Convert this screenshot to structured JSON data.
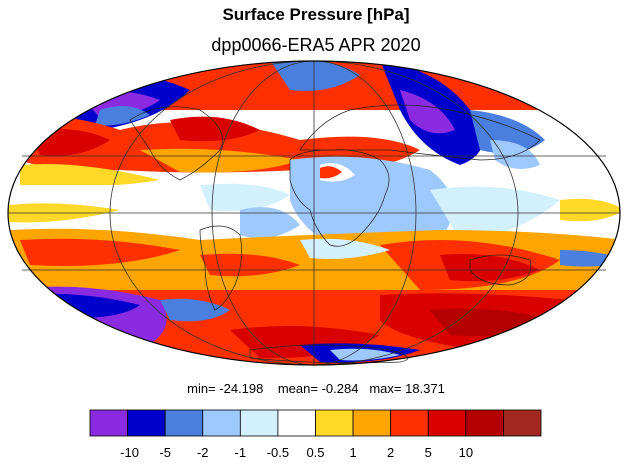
{
  "title": "Surface Pressure [hPa]",
  "subtitle": "dpp0066-ERA5  APR 2020",
  "stats": {
    "min_label": "min=",
    "min_value": "-24.198",
    "mean_label": "mean=",
    "mean_value": "-0.284",
    "max_label": "max=",
    "max_value": "18.371"
  },
  "colorbar": {
    "colors": [
      "#8a2be2",
      "#0000cd",
      "#4a7fe0",
      "#9ec9ff",
      "#d3f0ff",
      "#ffffff",
      "#ffd828",
      "#ffa500",
      "#ff3000",
      "#d90000",
      "#b40000",
      "#a02820"
    ],
    "tick_labels": [
      "-10",
      "-5",
      "-2",
      "-1",
      "-0.5",
      "0.5",
      "1",
      "2",
      "5",
      "10"
    ]
  },
  "map": {
    "projection": "Mollweide",
    "grid": true,
    "coastlines": true,
    "ocean_background": "#ffffff"
  }
}
